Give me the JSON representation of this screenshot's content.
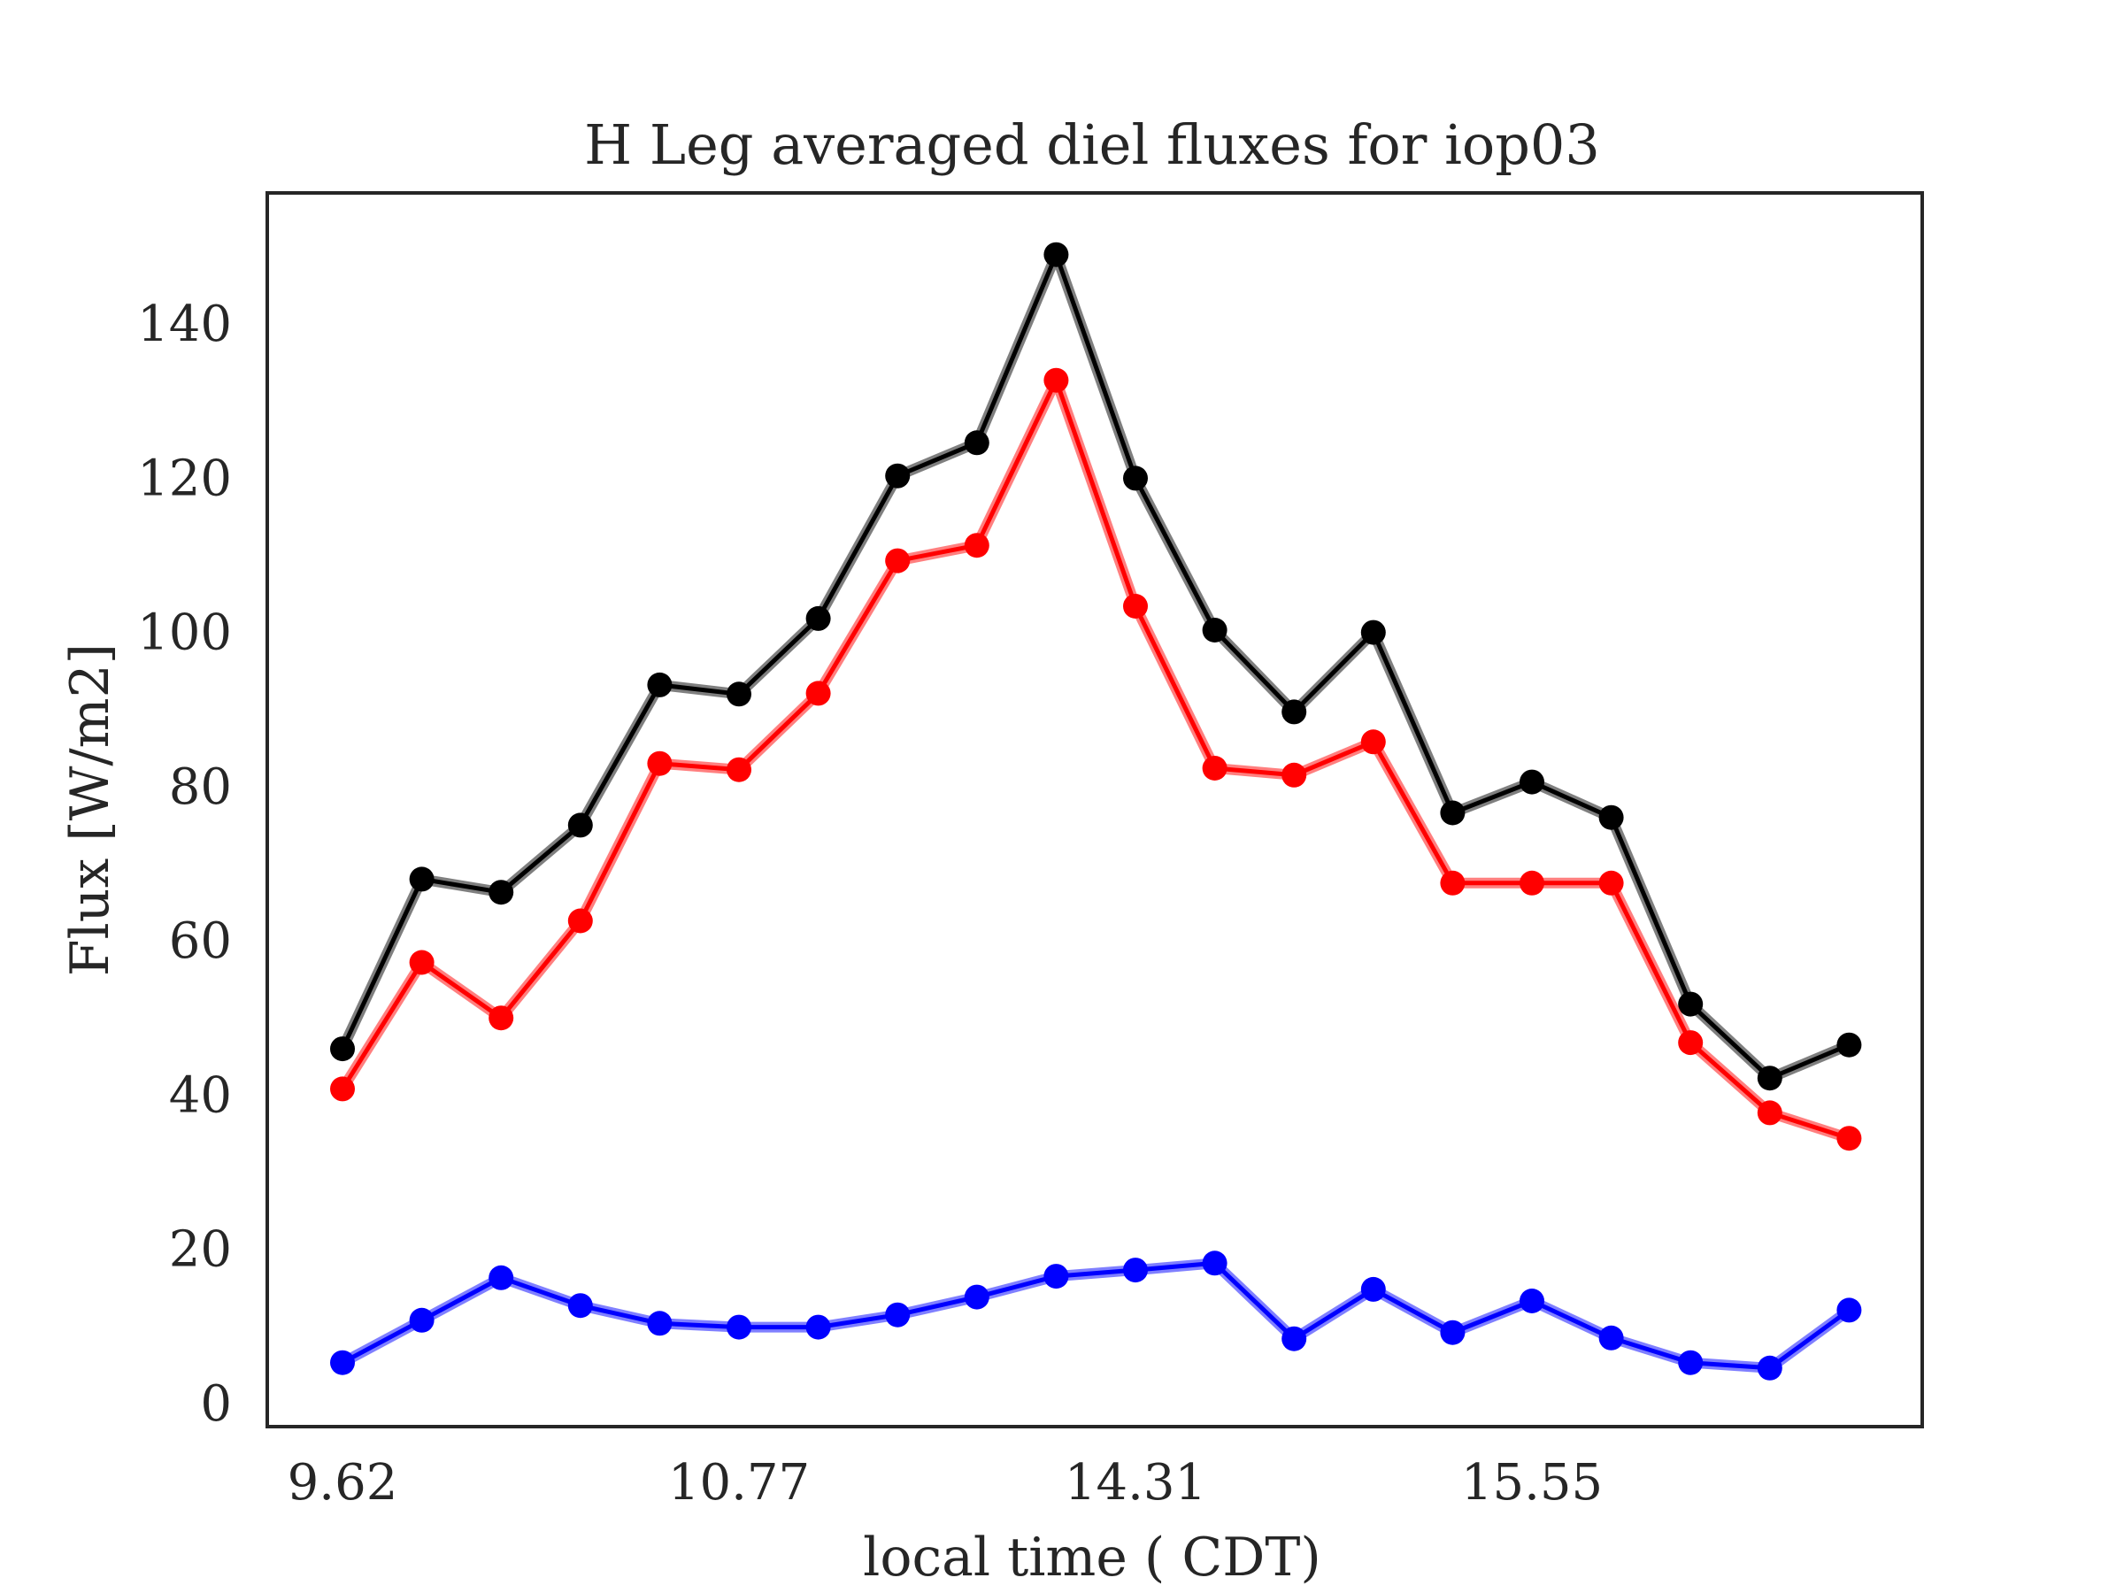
{
  "chart_data": {
    "type": "line",
    "title": "H Leg averaged diel fluxes for iop03",
    "xlabel": "local time ( CDT)",
    "ylabel": "Flux [W/m2]",
    "x_tick_labels": [
      "9.62",
      "10.77",
      "14.31",
      "15.55"
    ],
    "x_tick_positions": [
      0,
      5,
      10,
      15
    ],
    "y_ticks": [
      0,
      20,
      40,
      60,
      80,
      100,
      120,
      140
    ],
    "ylim": [
      -3,
      157
    ],
    "grid": false,
    "legend": "none",
    "series": [
      {
        "color": "#000000",
        "values": [
          46,
          68,
          66.3,
          75,
          93.2,
          92,
          101.8,
          120.3,
          124.6,
          149,
          120,
          100.3,
          89.7,
          100,
          76.6,
          80.6,
          76,
          51.8,
          42.2,
          46.5
        ]
      },
      {
        "color": "#ff0000",
        "values": [
          40.8,
          57.2,
          50,
          62.6,
          83,
          82.2,
          92.1,
          109.3,
          111.3,
          132.7,
          103.4,
          82.4,
          81.5,
          85.8,
          67.5,
          67.5,
          67.5,
          46.8,
          37.7,
          34.4
        ]
      },
      {
        "color": "#0000ff",
        "values": [
          5.3,
          10.8,
          16.3,
          12.7,
          10.4,
          9.9,
          9.9,
          11.5,
          13.8,
          16.5,
          17.3,
          18.2,
          8.4,
          14.8,
          9.2,
          13.3,
          8.5,
          5.3,
          4.6,
          12.1
        ]
      }
    ]
  }
}
